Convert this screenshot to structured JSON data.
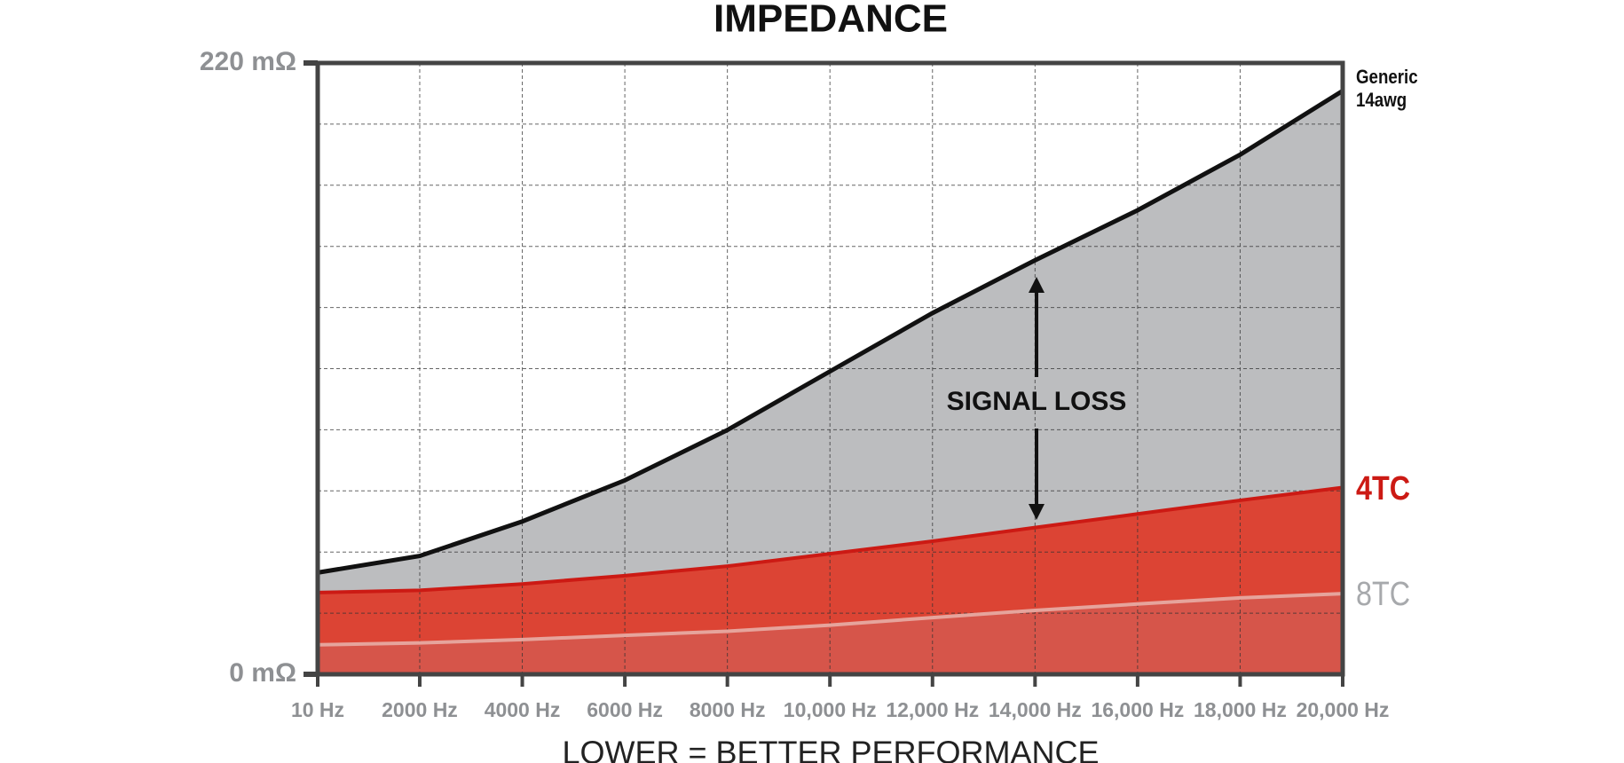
{
  "chart_data": {
    "type": "area-line",
    "title": "IMPEDANCE",
    "x_label": "LOWER = BETTER PERFORMANCE",
    "annotation": "SIGNAL LOSS",
    "x": [
      10,
      2000,
      4000,
      6000,
      8000,
      10000,
      12000,
      14000,
      16000,
      18000,
      20000
    ],
    "xlim": [
      10,
      20000
    ],
    "xticks": [
      {
        "value": 10,
        "label": "10 Hz"
      },
      {
        "value": 2000,
        "label": "2000 Hz"
      },
      {
        "value": 4000,
        "label": "4000 Hz"
      },
      {
        "value": 6000,
        "label": "6000 Hz"
      },
      {
        "value": 8000,
        "label": "8000 Hz"
      },
      {
        "value": 10000,
        "label": "10,000 Hz"
      },
      {
        "value": 12000,
        "label": "12,000 Hz"
      },
      {
        "value": 14000,
        "label": "14,000 Hz"
      },
      {
        "value": 16000,
        "label": "16,000 Hz"
      },
      {
        "value": 18000,
        "label": "18,000 Hz"
      },
      {
        "value": 20000,
        "label": "20,000 Hz"
      }
    ],
    "ylim": [
      0,
      220
    ],
    "yticks": [
      {
        "value": 0,
        "label": "0 mΩ"
      },
      {
        "value": 220,
        "label": "220 mΩ"
      }
    ],
    "yminor_ticks": [
      22,
      44,
      66,
      88,
      110,
      132,
      154,
      176,
      198
    ],
    "grid": true,
    "series": [
      {
        "name": "Generic 14awg",
        "color": "#111111",
        "fill": "#bcbdbf",
        "label_color": "#111111",
        "values": [
          36.6,
          42.6,
          55,
          69.8,
          87.9,
          109,
          130,
          149,
          167,
          187,
          210
        ]
      },
      {
        "name": "4TC",
        "color": "#cc1a14",
        "fill": "#dc4434",
        "label_color": "#cc1a14",
        "values": [
          29.4,
          30.2,
          32.5,
          35.5,
          38.9,
          43.4,
          47.9,
          52.8,
          57.7,
          62.6,
          67.2
        ]
      },
      {
        "name": "8TC",
        "color": "#e6a49c",
        "fill": "#d6554a",
        "label_color": "#a7a9ac",
        "values": [
          10.6,
          11.3,
          12.5,
          14,
          15.5,
          17.7,
          20.4,
          23,
          25.3,
          27.5,
          29
        ]
      }
    ]
  }
}
